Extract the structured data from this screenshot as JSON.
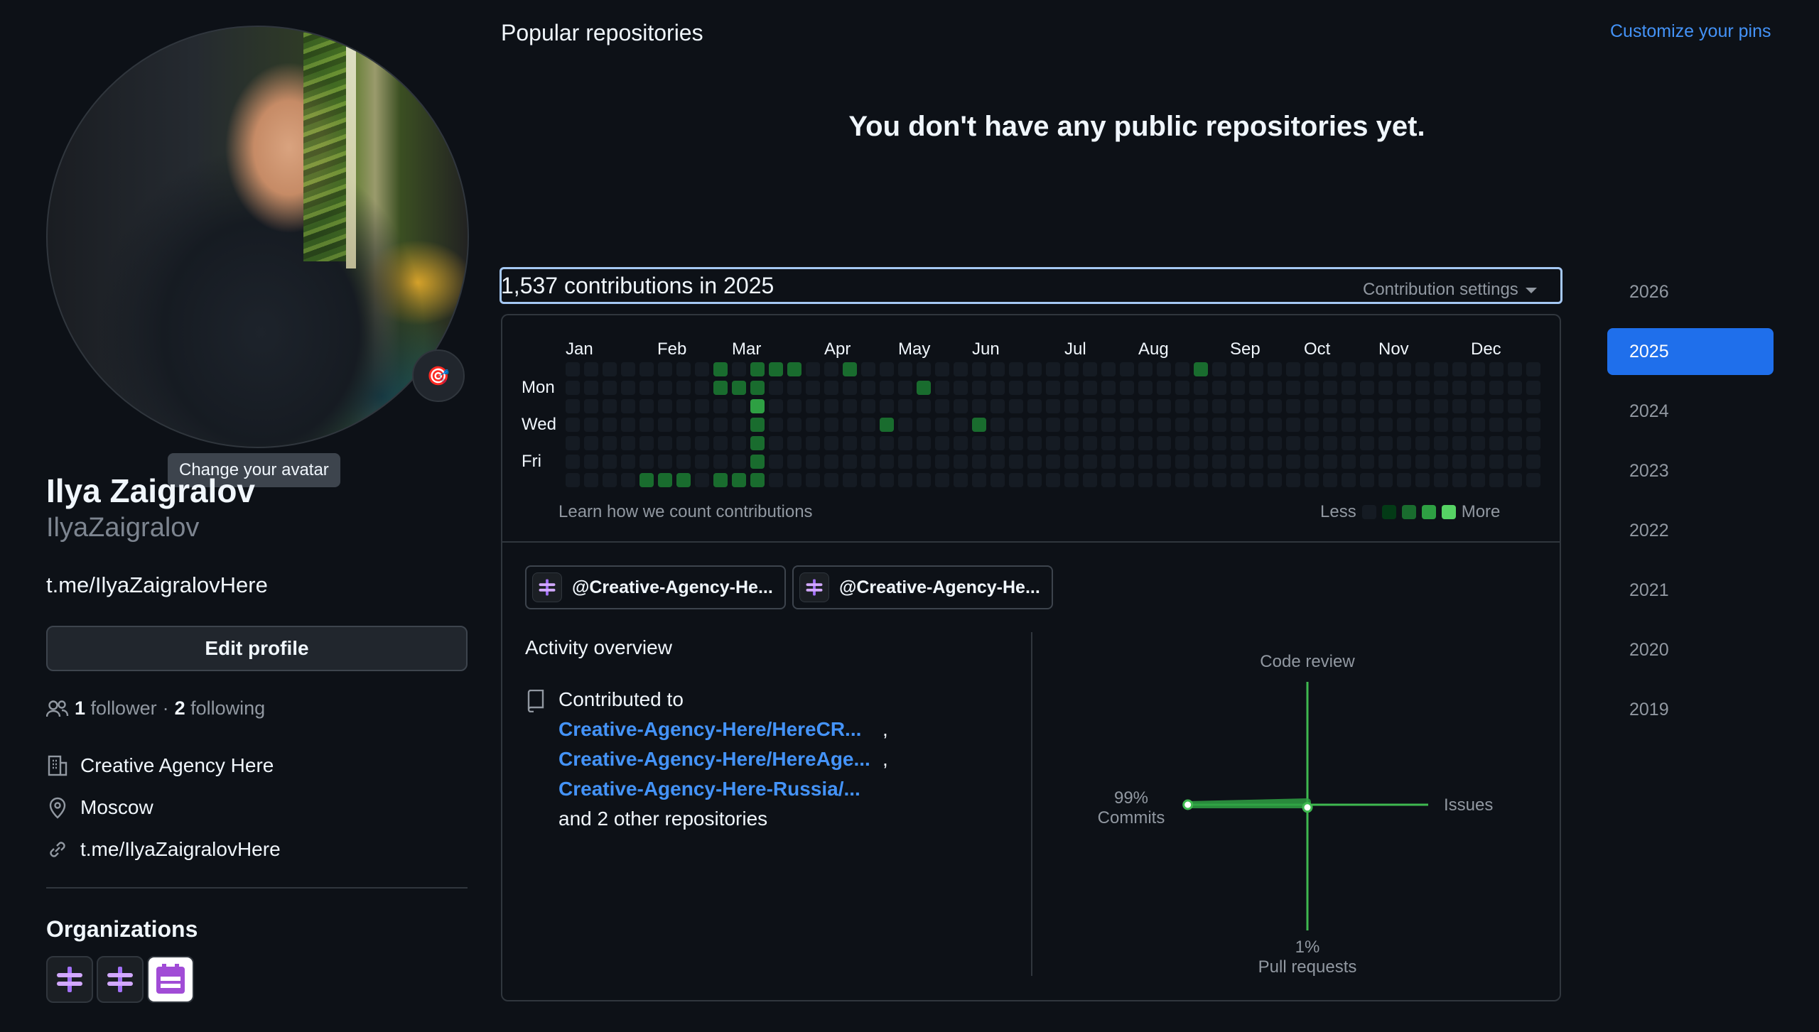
{
  "profile": {
    "full_name": "Ilya Zaigralov",
    "username": "IlyaZaigralov",
    "bio": "t.me/IlyaZaigralovHere",
    "avatar_tooltip": "Change your avatar",
    "avatar_status_emoji": "🎯",
    "edit_profile_label": "Edit profile",
    "followers_count": "1",
    "followers_label": "follower",
    "separator": "·",
    "following_count": "2",
    "following_label": "following",
    "company": "Creative Agency Here",
    "location": "Moscow",
    "website": "t.me/IlyaZaigralovHere",
    "organizations_title": "Organizations",
    "organization_icons": [
      "creative-agency-org-icon",
      "creative-agency-org-icon",
      "purple-org-icon"
    ]
  },
  "popular": {
    "title": "Popular repositories",
    "customize_label": "Customize your pins",
    "empty_message": "You don't have any public repositories yet."
  },
  "contributions": {
    "count_text": "1,537 contributions in 2025",
    "settings_label": "Contribution settings",
    "months": [
      "Jan",
      "Feb",
      "Mar",
      "Apr",
      "May",
      "Jun",
      "Jul",
      "Aug",
      "Sep",
      "Oct",
      "Nov",
      "Dec"
    ],
    "day_labels": [
      "Mon",
      "Wed",
      "Fri"
    ],
    "learn_link": "Learn how we count contributions",
    "legend_less": "Less",
    "legend_more": "More",
    "level_colors": [
      "#151b23",
      "#033a16",
      "#196c2e",
      "#2ea043",
      "#56d364"
    ],
    "levels": [
      "0000000000000000000000000000000000000000000000000000000",
      "0000000000000000000000000000000000000000000000000000000",
      "0000000000000000000000000000000000000000000000000000000",
      "0000000000000000000000000000000000000000000000000000000",
      "0000000000000000000000000000000000000000000000000000000",
      "0000000000000000000000000000000000000000000000000000000",
      "0000000000000000000000000000000000000000000000000000000",
      "0000000000000000000000000000000000000000000000000000000",
      "0000000000000000000000000000000000000000000000000000000",
      "0000000000000000000000000000000000000000000000000000000",
      "0000000000000000000000000000000000000000000000000000000",
      "0000000000000000000000000000000000000000000000000000000",
      "0000000000000000000000000000000000000000000000000000000",
      "0000000000000000000000000000000000000000000000000000000",
      "0000000000000000000000000000000000000000000000000000000",
      "0000000000000000000000000000000000000000000000000000000",
      "0000000000000000000000000000000000000000000000000000000",
      "0000000000000000000000000000000000000000000000000000000",
      "0000000000000000000000000000000000000000000000000000000",
      "0000000000000000000000000000000000000000000000000000000",
      "0000000000000000000000000000000000000000000000000000000",
      "0000000000000000000000000000000000000000000000000000000",
      "0000000000000000000000000000000000000000000000000000000",
      "0000000000000000000000000000000000000000000000000000000",
      "0000000000000000000000000000000000000000000000000000000",
      "0000000000000000000000000000000000000000000000000000000",
      "0000000000000000000000000000000000000000000000000000000",
      "0000000000000000000000000000000000000000000000000000000",
      "0000000000000000000000000000000000000000000000000000000",
      "0000000000000000000000000000000000000000000000000000000",
      "0000000000000000000000000000000000000000000000000000000",
      "0000000000000000000000000000000000000000000000000000000",
      "0000000000000000000000000000000000000000000000000000000",
      "0000000000000000000000000000000000000000000000000000000",
      "0000000000000000000000000000000000000000000000000000000",
      "0000000000000000000000000000000000000000000000000000000",
      "0000000000000000000000000000000000000000000000000000000",
      "0000000000000000000000000000000000000000000000000000000",
      "0000000000000000000000000000000000000000000000000000000",
      "0000000000000000000000000000000000000000000000000000000",
      "0000000000000000000000000000000000000000000000000000000",
      "0000000000000000000000000000000000000000000000000000000",
      "0000000000000000000000000000000000000000000000000000000",
      "0000000000000000000000000000000000000000000000000000000",
      "0000000000000000000000000000000000000000000000000000000",
      "0000000000000000000000000000000000000000000000000000000",
      "0000000000000000000000000000000000000000000000000000000",
      "0000000000000000000000000000000000000000000000000000000",
      "0000000000000000000000000000000000000000000000000000000",
      "0000000000000000000000000000000000000000000000000000000",
      "0000000000000000000000000000000000000000000000000000000",
      "0000000000000000000000000000000000000000000000000000000",
      "0000000000000000000000000000000000000000000000000000000"
    ],
    "weeks": [
      "0000000",
      "0000000",
      "0000000",
      "0000000",
      "0000002",
      "0000002",
      "0000002",
      "0000000",
      "2200002",
      "0200002",
      "2232222",
      "2000000",
      "2000000",
      "0000000",
      "0000000",
      "2000000",
      "0000000",
      "0002000",
      "0000000",
      "0200000",
      "0000000",
      "0000000",
      "0002000",
      "0000000",
      "0000000",
      "0000000",
      "0000000",
      "0000000",
      "0000000",
      "0000000",
      "0000000",
      "0000000",
      "0000000",
      "0000000",
      "2000000",
      "0000000",
      "0000000",
      "0000000",
      "0000000",
      "0000000",
      "0000000",
      "0000000",
      "0000000",
      "0000000",
      "0000000",
      "0000000",
      "0000000",
      "0000000",
      "0000000",
      "0000000",
      "0000000",
      "0000000",
      "0000000"
    ]
  },
  "org_chips": [
    {
      "label": "@Creative-Agency-He..."
    },
    {
      "label": "@Creative-Agency-He..."
    }
  ],
  "activity": {
    "title": "Activity overview",
    "contributed_to": "Contributed to",
    "repos": [
      "Creative-Agency-Here/HereCR...",
      "Creative-Agency-Here/HereAge...",
      "Creative-Agency-Here-Russia/..."
    ],
    "comma": ",",
    "and_more": "and 2 other repositories",
    "chart": {
      "code_review_label": "Code review",
      "issues_label": "Issues",
      "commits_percent": "99%",
      "commits_label": "Commits",
      "pull_requests_percent": "1%",
      "pull_requests_label": "Pull requests",
      "commits_value": 99,
      "pull_requests_value": 1,
      "issues_value": 0,
      "code_review_value": 0
    }
  },
  "years": [
    "2026",
    "2025",
    "2024",
    "2023",
    "2022",
    "2021",
    "2020",
    "2019"
  ],
  "active_year": "2025"
}
